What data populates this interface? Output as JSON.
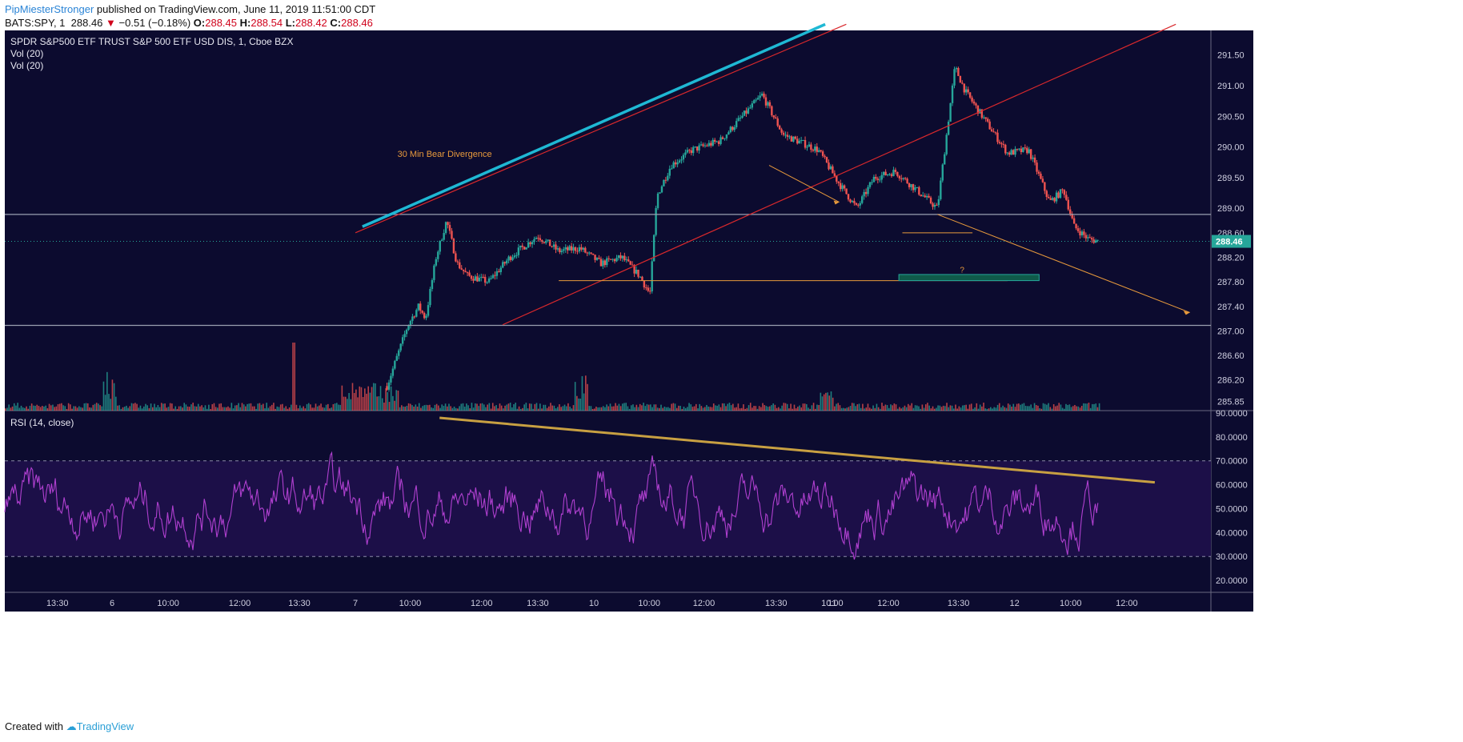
{
  "header": {
    "author": "PipMiesterStronger",
    "published_text": "published on TradingView.com, June 11, 2019 11:51:00 CDT",
    "symbol": "BATS:SPY, 1",
    "last": "288.46",
    "change": "−0.51 (−0.18%)",
    "open_label": "O:",
    "open": "288.45",
    "high_label": "H:",
    "high": "288.54",
    "low_label": "L:",
    "low": "288.42",
    "close_label": "C:",
    "close": "288.46"
  },
  "footer": {
    "created_with": "Created with",
    "brand": "TradingView"
  },
  "colors": {
    "bg": "#0c0b2f",
    "bull": "#26a69a",
    "bear": "#ef5350",
    "rsi": "#b040d0",
    "rsi_band": "#1c0f48",
    "channel": "#d8282c",
    "cyan": "#1fb8d4",
    "orange": "#e89a3c",
    "gold": "#c8a042",
    "level": "#9aa0b0",
    "price_tag": "#26a69a"
  },
  "chart_data": [
    {
      "type": "candlestick",
      "title": "SPDR S&P500 ETF TRUST S&P 500 ETF USD DIS, 1, Cboe BZX",
      "indicators": [
        "Vol (20)",
        "Vol (20)"
      ],
      "ylim": [
        285.7,
        291.9
      ],
      "y_ticks": [
        "291.50",
        "291.00",
        "290.50",
        "290.00",
        "289.50",
        "289.00",
        "288.60",
        "288.20",
        "287.80",
        "287.40",
        "287.00",
        "286.60",
        "286.20",
        "285.85"
      ],
      "current_price": "288.46",
      "annotations": {
        "divergence_label": "30 Min Bear Divergence",
        "question_mark": "?"
      },
      "x_ticks": [
        "13:30",
        "6",
        "10:00",
        "12:00",
        "13:30",
        "7",
        "10:00",
        "12:00",
        "13:30",
        "10",
        "10:00",
        "12:00",
        "13:30",
        "11",
        "10:00",
        "12:00",
        "13:30",
        "12",
        "10:00",
        "12:00"
      ],
      "price_path": [
        [
          0.0,
          null
        ],
        [
          0.545,
          286.1
        ],
        [
          0.56,
          286.6
        ],
        [
          0.575,
          287.1
        ],
        [
          0.59,
          287.4
        ],
        [
          0.6,
          287.2
        ],
        [
          0.615,
          288.2
        ],
        [
          0.63,
          288.8
        ],
        [
          0.645,
          288.1
        ],
        [
          0.66,
          287.9
        ],
        [
          0.69,
          287.8
        ],
        [
          0.72,
          288.2
        ],
        [
          0.76,
          288.55
        ],
        [
          0.79,
          288.3
        ],
        [
          0.82,
          288.35
        ],
        [
          0.85,
          288.1
        ],
        [
          0.88,
          288.2
        ],
        [
          0.905,
          287.9
        ],
        [
          0.92,
          287.6
        ],
        [
          0.93,
          289.2
        ],
        [
          0.95,
          289.7
        ],
        [
          0.98,
          289.95
        ],
        [
          1.02,
          290.1
        ],
        [
          1.06,
          290.6
        ],
        [
          1.08,
          290.85
        ],
        [
          1.11,
          290.2
        ],
        [
          1.16,
          289.95
        ],
        [
          1.19,
          289.4
        ],
        [
          1.215,
          289.0
        ],
        [
          1.24,
          289.5
        ],
        [
          1.27,
          289.6
        ],
        [
          1.3,
          289.3
        ],
        [
          1.33,
          289.0
        ],
        [
          1.355,
          291.3
        ],
        [
          1.37,
          290.9
        ],
        [
          1.4,
          290.4
        ],
        [
          1.43,
          289.9
        ],
        [
          1.46,
          289.95
        ],
        [
          1.49,
          289.1
        ],
        [
          1.51,
          289.3
        ],
        [
          1.525,
          288.7
        ],
        [
          1.545,
          288.5
        ],
        [
          1.56,
          288.46
        ]
      ]
    },
    {
      "type": "line",
      "title": "RSI (14, close)",
      "ylim": [
        15,
        91
      ],
      "y_ticks": [
        "90.0000",
        "80.0000",
        "70.0000",
        "60.0000",
        "50.0000",
        "40.0000",
        "30.0000",
        "20.0000"
      ],
      "overbought": 70,
      "oversold": 30,
      "trendline": {
        "from": [
          0.62,
          88
        ],
        "to": [
          1.64,
          61
        ]
      }
    }
  ]
}
